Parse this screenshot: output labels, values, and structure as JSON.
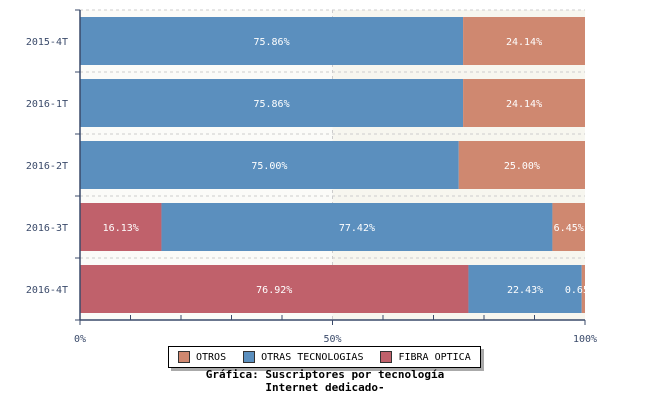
{
  "chart_data": {
    "type": "bar",
    "orientation": "horizontal",
    "stacked": true,
    "categories": [
      "2015-4T",
      "2016-1T",
      "2016-2T",
      "2016-3T",
      "2016-4T"
    ],
    "series": [
      {
        "name": "FIBRA OPTICA",
        "color": "#c0616b",
        "values": [
          0,
          0,
          0,
          16.13,
          76.92
        ]
      },
      {
        "name": "OTRAS TECNOLOGIAS",
        "color": "#5b8fbe",
        "values": [
          75.86,
          75.86,
          75.0,
          77.42,
          22.43
        ]
      },
      {
        "name": "OTROS",
        "color": "#cf8870",
        "values": [
          24.14,
          24.14,
          25.0,
          6.45,
          0.65
        ]
      }
    ],
    "xticks": [
      "0%",
      "50%",
      "100%"
    ],
    "xlim": [
      0,
      100
    ],
    "legend": "bottom",
    "legend_order": [
      "OTROS",
      "OTRAS TECNOLOGIAS",
      "FIBRA OPTICA"
    ],
    "title_line1": "Gráfica: Suscriptores por tecnología",
    "title_line2": "Internet dedicado-"
  }
}
